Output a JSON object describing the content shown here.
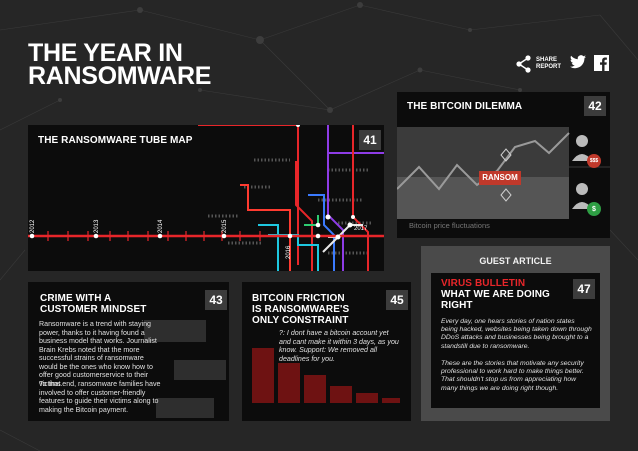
{
  "page": {
    "title_line1": "THE YEAR IN",
    "title_line2": "RANSOMWARE",
    "share_label_line1": "SHARE",
    "share_label_line2": "REPORT"
  },
  "cards": {
    "tube_map": {
      "title": "THE RANSOMWARE TUBE MAP",
      "page_number": "41",
      "years": [
        "2012",
        "2013",
        "2014",
        "2015",
        "2016",
        "2017"
      ]
    },
    "bitcoin_dilemma": {
      "title": "THE BITCOIN DILEMMA",
      "page_number": "42",
      "ransom_label": "RANSOM",
      "caption": "Bitcoin price fluctuations",
      "dollar_badge_1": "$$$",
      "dollar_badge_2": "$"
    },
    "crime": {
      "title_line1": "CRIME WITH A",
      "title_line2": "CUSTOMER MINDSET",
      "page_number": "43",
      "para1": "Ransomware is a trend with staying power, thanks to it having found a business model that works. Journalist Brain Krebs noted that the more successful strains of ransomware would be the ones who know how to offer good customerservice to their victims.",
      "para2": "To that end, ransomware families have involved to offer customer-friendly features to guide their victims along to making the Bitcoin payment."
    },
    "friction": {
      "title_line1": "BITCOIN FRICTION",
      "title_line2": "IS RANSOMWARE'S",
      "title_line3": "ONLY CONSTRAINT",
      "page_number": "45",
      "quote": "?: I dont have a bitcoin account yet and cant make it within 3 days, as you know. Support: We removed all deadlines for you."
    },
    "guest": {
      "label": "GUEST ARTICLE",
      "title_red": "VIRUS BULLETIN",
      "title_line2": "WHAT WE ARE DOING",
      "title_line3": "RIGHT",
      "page_number": "47",
      "para1": "Every day, one hears stories of nation states being hacked, websites being taken down through DDoS attacks and businesses being brought to a standstill due to ransomware.",
      "para2": "These are the stories that motivate any security professional to work hard to make things better. That shouldn't stop us from appreciating how many things we are doing right though."
    }
  },
  "colors": {
    "accent_red": "#e8262a",
    "ransom_badge": "#c0392b",
    "green_badge": "#2e9e44"
  }
}
